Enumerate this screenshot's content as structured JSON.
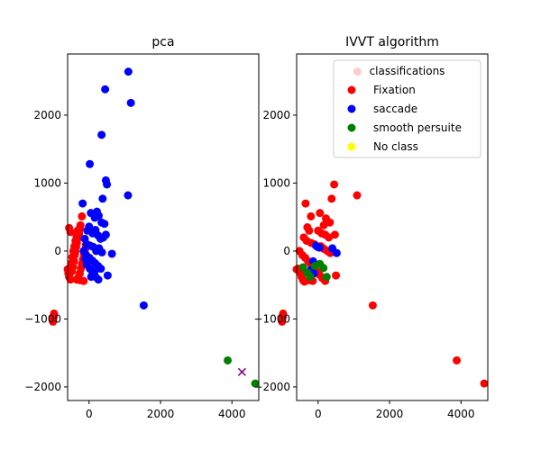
{
  "chart_data": [
    {
      "type": "scatter",
      "title": "pca",
      "xlabel": "",
      "ylabel": "",
      "xlim": [
        -600,
        4750
      ],
      "ylim": [
        -2200,
        2900
      ],
      "xticks": [
        0,
        2000,
        4000
      ],
      "yticks": [
        -2000,
        -1000,
        0,
        1000,
        2000
      ],
      "grid": false,
      "legend": null,
      "series": [
        {
          "color": "#ff0000",
          "marker": "o",
          "points": [
            [
              -980,
              -920
            ],
            [
              -990,
              -970
            ],
            [
              -1010,
              -1040
            ],
            [
              -1000,
              -990
            ],
            [
              -600,
              -270
            ],
            [
              -580,
              -330
            ],
            [
              -560,
              -380
            ],
            [
              -520,
              -420
            ],
            [
              -480,
              -300
            ],
            [
              -450,
              -230
            ],
            [
              -420,
              -150
            ],
            [
              -400,
              -60
            ],
            [
              -380,
              -10
            ],
            [
              -360,
              60
            ],
            [
              -340,
              120
            ],
            [
              -320,
              180
            ],
            [
              -300,
              230
            ],
            [
              -280,
              290
            ],
            [
              -260,
              340
            ],
            [
              -240,
              380
            ],
            [
              -500,
              -180
            ],
            [
              -470,
              -90
            ],
            [
              -440,
              0
            ],
            [
              -410,
              70
            ],
            [
              -380,
              150
            ],
            [
              -350,
              220
            ],
            [
              -560,
              340
            ],
            [
              -520,
              280
            ],
            [
              -300,
              -390
            ],
            [
              -260,
              -330
            ],
            [
              -230,
              -260
            ],
            [
              -200,
              -190
            ],
            [
              -170,
              -120
            ],
            [
              -140,
              -50
            ],
            [
              -110,
              20
            ],
            [
              -90,
              90
            ],
            [
              -200,
              510
            ],
            [
              -250,
              -430
            ],
            [
              -350,
              -420
            ],
            [
              -150,
              -440
            ],
            [
              -320,
              300
            ],
            [
              -280,
              250
            ]
          ]
        },
        {
          "color": "#0000ff",
          "marker": "o",
          "points": [
            [
              1100,
              2640
            ],
            [
              450,
              2380
            ],
            [
              1170,
              2180
            ],
            [
              350,
              1710
            ],
            [
              20,
              1280
            ],
            [
              470,
              1040
            ],
            [
              500,
              980
            ],
            [
              1090,
              820
            ],
            [
              380,
              770
            ],
            [
              -180,
              700
            ],
            [
              50,
              560
            ],
            [
              220,
              580
            ],
            [
              160,
              490
            ],
            [
              270,
              520
            ],
            [
              350,
              420
            ],
            [
              430,
              400
            ],
            [
              0,
              360
            ],
            [
              -50,
              300
            ],
            [
              100,
              260
            ],
            [
              180,
              310
            ],
            [
              250,
              230
            ],
            [
              320,
              180
            ],
            [
              400,
              200
            ],
            [
              470,
              240
            ],
            [
              -120,
              180
            ],
            [
              -60,
              100
            ],
            [
              30,
              80
            ],
            [
              120,
              60
            ],
            [
              200,
              0
            ],
            [
              280,
              40
            ],
            [
              360,
              -20
            ],
            [
              640,
              -40
            ],
            [
              -150,
              0
            ],
            [
              -80,
              -60
            ],
            [
              10,
              -100
            ],
            [
              90,
              -140
            ],
            [
              170,
              -180
            ],
            [
              250,
              -220
            ],
            [
              330,
              -260
            ],
            [
              520,
              -360
            ],
            [
              -60,
              -200
            ],
            [
              20,
              -260
            ],
            [
              100,
              -320
            ],
            [
              180,
              -380
            ],
            [
              260,
              -420
            ],
            [
              150,
              -300
            ],
            [
              60,
              -380
            ],
            [
              -100,
              -120
            ],
            [
              1530,
              -800
            ]
          ]
        },
        {
          "color": "#008000",
          "marker": "o",
          "points": [
            [
              3880,
              -1610
            ],
            [
              4650,
              -1950
            ]
          ]
        },
        {
          "color": "#800080",
          "marker": "x",
          "points": [
            [
              4280,
              -1780
            ]
          ]
        }
      ]
    },
    {
      "type": "scatter",
      "title": "IVVT algorithm",
      "xlabel": "",
      "ylabel": "",
      "xlim": [
        -600,
        4750
      ],
      "ylim": [
        -2200,
        2900
      ],
      "xticks": [
        0,
        2000,
        4000
      ],
      "yticks": [
        -2000,
        -1000,
        0,
        1000,
        2000
      ],
      "grid": false,
      "legend": {
        "title": "classifications",
        "placement": "upper right",
        "entries": [
          {
            "label": "Fixation",
            "color": "#ff0000"
          },
          {
            "label": "saccade",
            "color": "#0000ff"
          },
          {
            "label": "smooth persuite",
            "color": "#008000"
          },
          {
            "label": "No class",
            "color": "#ffff00"
          }
        ]
      },
      "series": [
        {
          "name": "Fixation",
          "color": "#ff0000",
          "marker": "o",
          "points": [
            [
              1100,
              2640
            ],
            [
              450,
              980
            ],
            [
              1090,
              820
            ],
            [
              -350,
              700
            ],
            [
              380,
              770
            ],
            [
              -200,
              510
            ],
            [
              50,
              560
            ],
            [
              220,
              480
            ],
            [
              330,
              420
            ],
            [
              160,
              380
            ],
            [
              -300,
              350
            ],
            [
              -250,
              300
            ],
            [
              0,
              300
            ],
            [
              100,
              260
            ],
            [
              200,
              240
            ],
            [
              300,
              200
            ],
            [
              470,
              240
            ],
            [
              -400,
              200
            ],
            [
              -320,
              150
            ],
            [
              -200,
              120
            ],
            [
              -100,
              100
            ],
            [
              80,
              70
            ],
            [
              170,
              30
            ],
            [
              260,
              0
            ],
            [
              340,
              -30
            ],
            [
              -520,
              0
            ],
            [
              -440,
              -60
            ],
            [
              -360,
              -100
            ],
            [
              -280,
              -150
            ],
            [
              -200,
              -200
            ],
            [
              -120,
              -250
            ],
            [
              -40,
              -300
            ],
            [
              40,
              -350
            ],
            [
              120,
              -400
            ],
            [
              200,
              -440
            ],
            [
              -560,
              -260
            ],
            [
              -500,
              -320
            ],
            [
              -460,
              -380
            ],
            [
              -420,
              -430
            ],
            [
              -380,
              -450
            ],
            [
              -600,
              -270
            ],
            [
              -250,
              -430
            ],
            [
              -150,
              -440
            ],
            [
              500,
              -360
            ],
            [
              -980,
              -920
            ],
            [
              -990,
              -970
            ],
            [
              -1010,
              -1040
            ],
            [
              -1000,
              -990
            ],
            [
              1530,
              -800
            ],
            [
              3880,
              -1610
            ],
            [
              4650,
              -1950
            ]
          ]
        },
        {
          "name": "saccade",
          "color": "#0000ff",
          "marker": "o",
          "points": [
            [
              -60,
              80
            ],
            [
              -10,
              60
            ],
            [
              40,
              50
            ],
            [
              400,
              40
            ],
            [
              520,
              -30
            ],
            [
              -140,
              -150
            ],
            [
              -200,
              -280
            ],
            [
              -120,
              -330
            ]
          ]
        },
        {
          "name": "smooth persuite",
          "color": "#008000",
          "marker": "o",
          "points": [
            [
              -420,
              -240
            ],
            [
              -300,
              -320
            ],
            [
              -220,
              -380
            ],
            [
              50,
              -190
            ],
            [
              150,
              -250
            ],
            [
              240,
              -380
            ],
            [
              -90,
              -220
            ]
          ]
        },
        {
          "name": "No class",
          "color": "#ffff00",
          "marker": "o",
          "points": []
        }
      ]
    }
  ]
}
